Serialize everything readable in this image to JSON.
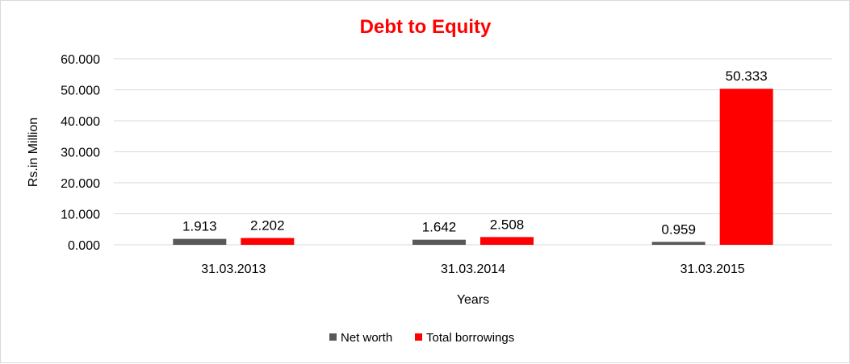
{
  "chart_data": {
    "type": "bar",
    "title": "Debt to Equity",
    "xlabel": "Years",
    "ylabel": "Rs.in Million",
    "categories": [
      "31.03.2013",
      "31.03.2014",
      "31.03.2015"
    ],
    "series": [
      {
        "name": "Net worth",
        "values": [
          1.913,
          1.642,
          0.959
        ],
        "color": "#595959"
      },
      {
        "name": "Total borrowings",
        "values": [
          2.202,
          2.508,
          50.333
        ],
        "color": "#ff0000"
      }
    ],
    "ylim": [
      0,
      60
    ],
    "yticks": [
      0,
      10,
      20,
      30,
      40,
      50,
      60
    ],
    "ytick_labels": [
      "0.000",
      "10.000",
      "20.000",
      "30.000",
      "40.000",
      "50.000",
      "60.000"
    ],
    "grid": true,
    "legend_position": "bottom",
    "title_color": "#ff0000"
  }
}
